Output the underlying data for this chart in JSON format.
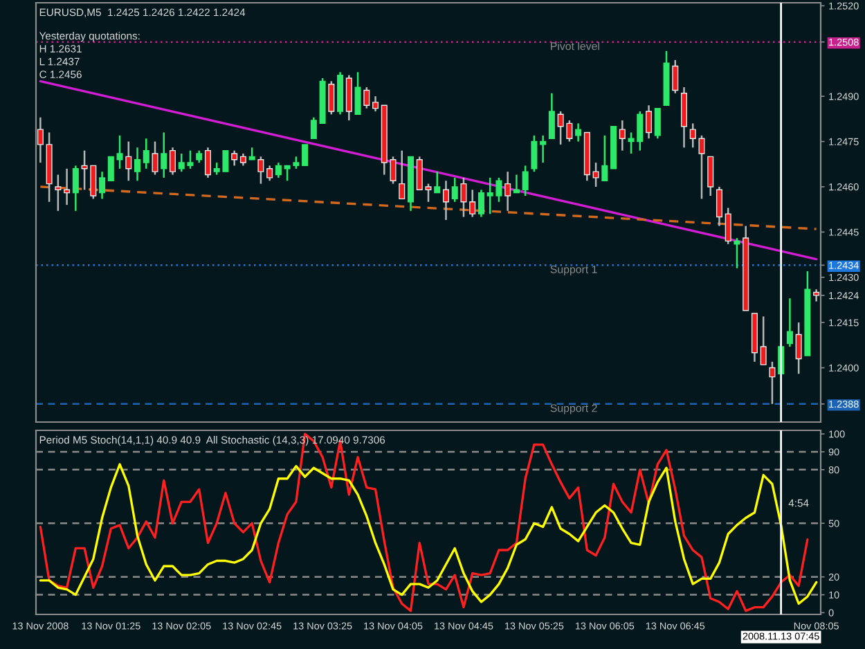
{
  "chart_data": [
    {
      "type": "candlestick",
      "title": "EURUSD,M5  1.2425 1.2426 1.2422 1.2424",
      "annotations": [
        "Yesterday quotations:",
        "H 1.2631",
        "L 1.2437",
        "C 1.2456"
      ],
      "categories": [
        "13 Nov 2008",
        null,
        null,
        null,
        null,
        null,
        null,
        null,
        "13 Nov 01:25",
        null,
        null,
        null,
        null,
        null,
        null,
        null,
        "13 Nov 02:05",
        null,
        null,
        null,
        null,
        null,
        null,
        null,
        "13 Nov 02:45",
        null,
        null,
        null,
        null,
        null,
        null,
        null,
        "13 Nov 03:25",
        null,
        null,
        null,
        null,
        null,
        null,
        null,
        "13 Nov 04:05",
        null,
        null,
        null,
        null,
        null,
        null,
        null,
        "13 Nov 04:45",
        null,
        null,
        null,
        null,
        null,
        null,
        null,
        "13 Nov 05:25",
        null,
        null,
        null,
        null,
        null,
        null,
        null,
        "13 Nov 06:05",
        null,
        null,
        null,
        null,
        null,
        null,
        null,
        "13 Nov 06:45",
        null,
        null,
        null,
        null,
        null,
        null,
        null,
        null,
        null,
        null,
        null,
        "2008.11.13 07:45",
        null,
        null,
        null,
        "Nov 08:05"
      ],
      "ohlc": [
        [
          1.2479,
          1.2483,
          1.2468,
          1.2474
        ],
        [
          1.2474,
          1.2478,
          1.2455,
          1.2461
        ],
        [
          1.246,
          1.2464,
          1.2452,
          1.2459
        ],
        [
          1.2459,
          1.2466,
          1.2454,
          1.2458
        ],
        [
          1.2458,
          1.2467,
          1.2452,
          1.2466
        ],
        [
          1.2467,
          1.2472,
          1.2459,
          1.2466
        ],
        [
          1.2467,
          1.2467,
          1.2456,
          1.2457
        ],
        [
          1.2458,
          1.2465,
          1.2456,
          1.2463
        ],
        [
          1.2462,
          1.247,
          1.2462,
          1.247
        ],
        [
          1.2469,
          1.2477,
          1.2466,
          1.2471
        ],
        [
          1.247,
          1.2475,
          1.2462,
          1.2466
        ],
        [
          1.2465,
          1.2473,
          1.2462,
          1.2469
        ],
        [
          1.2468,
          1.2476,
          1.2466,
          1.2472
        ],
        [
          1.2471,
          1.2475,
          1.2464,
          1.2465
        ],
        [
          1.2466,
          1.2478,
          1.2463,
          1.2471
        ],
        [
          1.2472,
          1.2473,
          1.2464,
          1.2465
        ],
        [
          1.2466,
          1.2471,
          1.2465,
          1.2468
        ],
        [
          1.2467,
          1.2472,
          1.2466,
          1.2468
        ],
        [
          1.2469,
          1.2472,
          1.2468,
          1.2471
        ],
        [
          1.2472,
          1.2473,
          1.2463,
          1.2464
        ],
        [
          1.2465,
          1.2468,
          1.2464,
          1.2466
        ],
        [
          1.2465,
          1.2472,
          1.2465,
          1.2472
        ],
        [
          1.2471,
          1.2472,
          1.2467,
          1.2469
        ],
        [
          1.247,
          1.2471,
          1.2467,
          1.2468
        ],
        [
          1.2469,
          1.2473,
          1.2469,
          1.247
        ],
        [
          1.2469,
          1.247,
          1.2461,
          1.2465
        ],
        [
          1.2466,
          1.2467,
          1.2462,
          1.2463
        ],
        [
          1.2464,
          1.2468,
          1.2463,
          1.2467
        ],
        [
          1.2466,
          1.2467,
          1.2462,
          1.2467
        ],
        [
          1.2467,
          1.247,
          1.2466,
          1.2468
        ],
        [
          1.2467,
          1.2474,
          1.2467,
          1.2474
        ],
        [
          1.2476,
          1.2483,
          1.2476,
          1.2482
        ],
        [
          1.2481,
          1.2496,
          1.2481,
          1.2495
        ],
        [
          1.2494,
          1.2495,
          1.2484,
          1.2485
        ],
        [
          1.2485,
          1.2498,
          1.2484,
          1.2497
        ],
        [
          1.2496,
          1.2497,
          1.2482,
          1.2485
        ],
        [
          1.2484,
          1.2498,
          1.2484,
          1.2493
        ],
        [
          1.2492,
          1.2493,
          1.2486,
          1.2487
        ],
        [
          1.2488,
          1.249,
          1.2485,
          1.2486
        ],
        [
          1.2487,
          1.2487,
          1.2464,
          1.2468
        ],
        [
          1.2469,
          1.247,
          1.2461,
          1.2462
        ],
        [
          1.2461,
          1.2472,
          1.2456,
          1.2456
        ],
        [
          1.2455,
          1.247,
          1.2452,
          1.247
        ],
        [
          1.2469,
          1.247,
          1.2459,
          1.2459
        ],
        [
          1.246,
          1.2461,
          1.2455,
          1.2459
        ],
        [
          1.2458,
          1.2465,
          1.2458,
          1.246
        ],
        [
          1.2459,
          1.2462,
          1.2449,
          1.2455
        ],
        [
          1.2456,
          1.2463,
          1.2455,
          1.246
        ],
        [
          1.2461,
          1.2463,
          1.245,
          1.2455
        ],
        [
          1.2455,
          1.2459,
          1.245,
          1.2451
        ],
        [
          1.2451,
          1.2459,
          1.245,
          1.2458
        ],
        [
          1.2457,
          1.2463,
          1.2451,
          1.2458
        ],
        [
          1.2457,
          1.2463,
          1.2455,
          1.2462
        ],
        [
          1.2461,
          1.2465,
          1.2452,
          1.2457
        ],
        [
          1.2458,
          1.2464,
          1.2458,
          1.2459
        ],
        [
          1.2459,
          1.2467,
          1.2457,
          1.2465
        ],
        [
          1.2466,
          1.2477,
          1.2465,
          1.2475
        ],
        [
          1.2474,
          1.2477,
          1.2468,
          1.2475
        ],
        [
          1.2476,
          1.2491,
          1.2476,
          1.2485
        ],
        [
          1.2484,
          1.2485,
          1.2474,
          1.248
        ],
        [
          1.2481,
          1.2482,
          1.2475,
          1.2476
        ],
        [
          1.2477,
          1.2481,
          1.2475,
          1.2479
        ],
        [
          1.2478,
          1.2478,
          1.2462,
          1.2464
        ],
        [
          1.2465,
          1.2468,
          1.246,
          1.2463
        ],
        [
          1.2462,
          1.2477,
          1.2462,
          1.2467
        ],
        [
          1.2466,
          1.248,
          1.2466,
          1.248
        ],
        [
          1.2479,
          1.2482,
          1.2472,
          1.2476
        ],
        [
          1.2475,
          1.2478,
          1.2471,
          1.2476
        ],
        [
          1.2475,
          1.2485,
          1.2472,
          1.2484
        ],
        [
          1.2485,
          1.2487,
          1.2476,
          1.2478
        ],
        [
          1.2477,
          1.2486,
          1.2476,
          1.2486
        ],
        [
          1.2487,
          1.2505,
          1.2487,
          1.2501
        ],
        [
          1.25,
          1.2502,
          1.2491,
          1.2492
        ],
        [
          1.2491,
          1.2493,
          1.2473,
          1.248
        ],
        [
          1.2479,
          1.2481,
          1.2473,
          1.2476
        ],
        [
          1.2476,
          1.2477,
          1.2456,
          1.2471
        ],
        [
          1.247,
          1.247,
          1.2457,
          1.246
        ],
        [
          1.2459,
          1.246,
          1.2447,
          1.245
        ],
        [
          1.2451,
          1.2453,
          1.2441,
          1.2442
        ],
        [
          1.2441,
          1.2443,
          1.2433,
          1.2442
        ],
        [
          1.2443,
          1.2447,
          1.2419,
          1.2419
        ],
        [
          1.2418,
          1.2418,
          1.2402,
          1.2405
        ],
        [
          1.2407,
          1.2417,
          1.2401,
          1.2401
        ],
        [
          1.24,
          1.2402,
          1.2388,
          1.2397
        ],
        [
          1.2398,
          1.2408,
          1.2398,
          1.2407
        ],
        [
          1.2408,
          1.2423,
          1.2407,
          1.2412
        ],
        [
          1.2411,
          1.2415,
          1.2398,
          1.2403
        ],
        [
          1.2404,
          1.2432,
          1.2404,
          1.2426
        ],
        [
          1.2425,
          1.2426,
          1.2422,
          1.2424
        ]
      ],
      "series": [
        {
          "type": "line",
          "values": [
            1.2495,
            null,
            null,
            null,
            null,
            null,
            null,
            null,
            null,
            null,
            null,
            null,
            null,
            null,
            null,
            null,
            null,
            null,
            null,
            null,
            null,
            null,
            null,
            null,
            null,
            null,
            null,
            null,
            null,
            null,
            null,
            null,
            null,
            null,
            null,
            null,
            null,
            null,
            null,
            null,
            null,
            null,
            null,
            null,
            null,
            null,
            null,
            null,
            null,
            null,
            null,
            null,
            null,
            null,
            null,
            null,
            null,
            null,
            null,
            null,
            null,
            null,
            null,
            null,
            null,
            null,
            null,
            null,
            null,
            null,
            null,
            null,
            null,
            null,
            null,
            null,
            null,
            null,
            null,
            null,
            null,
            null,
            null,
            null,
            null,
            null,
            null,
            null,
            1.2436
          ],
          "color": "#d21ed2",
          "line_style": "solid"
        },
        {
          "type": "line",
          "values": [
            1.246,
            null,
            null,
            null,
            null,
            null,
            null,
            null,
            null,
            null,
            null,
            null,
            null,
            null,
            null,
            null,
            null,
            null,
            null,
            null,
            null,
            null,
            null,
            null,
            null,
            null,
            null,
            null,
            null,
            null,
            null,
            null,
            null,
            null,
            null,
            null,
            null,
            null,
            null,
            null,
            null,
            null,
            null,
            null,
            null,
            null,
            null,
            null,
            null,
            null,
            null,
            null,
            null,
            null,
            null,
            null,
            null,
            null,
            null,
            null,
            null,
            null,
            null,
            null,
            null,
            null,
            null,
            null,
            null,
            null,
            null,
            null,
            null,
            null,
            null,
            null,
            null,
            null,
            null,
            null,
            null,
            null,
            null,
            null,
            null,
            null,
            null,
            null,
            1.2446
          ],
          "color": "#d2691e",
          "line_style": "dashed"
        }
      ],
      "ylim": [
        1.2382,
        1.2521
      ],
      "yticks": [
        {
          "value": 1.252,
          "label": "1.2520"
        },
        {
          "value": 1.2508,
          "label": "1.2508"
        },
        {
          "value": 1.249,
          "label": "1.2490"
        },
        {
          "value": 1.2475,
          "label": "1.2475"
        },
        {
          "value": 1.246,
          "label": "1.2460"
        },
        {
          "value": 1.2445,
          "label": "1.2445"
        },
        {
          "value": 1.2434,
          "label": "1.2434"
        },
        {
          "value": 1.243,
          "label": "1.2430"
        },
        {
          "value": 1.2424,
          "label": "1.2424"
        },
        {
          "value": 1.2415,
          "label": "1.2415"
        },
        {
          "value": 1.24,
          "label": "1.2400"
        },
        {
          "value": 1.2388,
          "label": "1.2388"
        }
      ],
      "tick_labels": "y",
      "ref_lines": [
        {
          "axis": "y",
          "value": 1.2508,
          "label": "Pivot level",
          "color": "#c8208c",
          "line_style": "dotted"
        },
        {
          "axis": "y",
          "value": 1.2434,
          "label": "Support 1",
          "color": "#1e78dc",
          "line_style": "dotted"
        },
        {
          "axis": "y",
          "value": 1.2388,
          "label": "Support 2",
          "color": "#1e64b4",
          "line_style": "dashed"
        },
        {
          "axis": "x",
          "value": "2008.11.13 07:45",
          "color": "#ffffff",
          "line_style": "solid"
        }
      ]
    },
    {
      "type": "line",
      "title": "Period M5 Stoch(14,1,1) 40.9 40.9  All Stochastic (14,3,3) 17.0940 9.7306",
      "annotations": [
        "4:54"
      ],
      "categories": [
        "13 Nov 2008",
        null,
        null,
        null,
        null,
        null,
        null,
        null,
        "13 Nov 01:25",
        null,
        null,
        null,
        null,
        null,
        null,
        null,
        "13 Nov 02:05",
        null,
        null,
        null,
        null,
        null,
        null,
        null,
        "13 Nov 02:45",
        null,
        null,
        null,
        null,
        null,
        null,
        null,
        "13 Nov 03:25",
        null,
        null,
        null,
        null,
        null,
        null,
        null,
        "13 Nov 04:05",
        null,
        null,
        null,
        null,
        null,
        null,
        null,
        "13 Nov 04:45",
        null,
        null,
        null,
        null,
        null,
        null,
        null,
        "13 Nov 05:25",
        null,
        null,
        null,
        null,
        null,
        null,
        null,
        "13 Nov 06:05",
        null,
        null,
        null,
        null,
        null,
        null,
        null,
        "13 Nov 06:45",
        null,
        null,
        null,
        null,
        null,
        null,
        null,
        null,
        null,
        null,
        null,
        "2008.11.13 07:45",
        null,
        null,
        null,
        "Nov 08:05"
      ],
      "series": [
        {
          "color": "#ff2020",
          "values": [
            48,
            18,
            15,
            14,
            36,
            36,
            14,
            26,
            47,
            49,
            36,
            42,
            51,
            42,
            74,
            50,
            62,
            62,
            69,
            39,
            50,
            67,
            50,
            45,
            50,
            29,
            17,
            39,
            55,
            62,
            100,
            96,
            87,
            70,
            96,
            66,
            87,
            70,
            69,
            40,
            14,
            5,
            1,
            39,
            16,
            16,
            13,
            21,
            3,
            22,
            21,
            22,
            35,
            35,
            39,
            75,
            94,
            94,
            83,
            73,
            64,
            70,
            35,
            32,
            42,
            72,
            62,
            56,
            80,
            61,
            83,
            91,
            69,
            43,
            35,
            31,
            8,
            6,
            2,
            12,
            1,
            3,
            3,
            9,
            17,
            21,
            15,
            40.9,
            null
          ]
        },
        {
          "color": "#ffff00",
          "values": [
            18,
            18,
            14,
            13,
            10,
            20,
            30,
            53,
            70,
            83,
            71,
            43,
            27,
            18,
            26,
            26,
            21,
            21,
            22,
            27,
            29,
            29,
            28,
            30,
            35,
            50,
            58,
            75,
            75,
            82,
            76,
            81,
            78,
            75,
            75,
            74,
            66,
            54,
            39,
            27,
            13,
            10,
            16,
            16,
            14,
            18,
            27,
            36,
            22,
            12,
            6,
            10,
            16,
            25,
            38,
            41,
            50,
            48,
            59,
            47,
            44,
            40,
            48,
            56,
            60,
            56,
            47,
            39,
            38,
            62,
            73,
            81,
            51,
            30,
            16,
            19,
            19,
            28,
            44,
            49,
            53,
            56,
            77,
            72,
            49,
            18,
            5,
            9,
            17
          ]
        }
      ],
      "ylim": [
        -1,
        102
      ],
      "yticks": [
        100,
        90,
        80,
        50,
        20,
        10,
        0
      ],
      "ref_lines": [
        {
          "axis": "y",
          "value": 90,
          "color": "#8c8c8c",
          "line_style": "dashed"
        },
        {
          "axis": "y",
          "value": 80,
          "color": "#8c8c8c",
          "line_style": "dashed"
        },
        {
          "axis": "y",
          "value": 50,
          "color": "#8c8c8c",
          "line_style": "dashed"
        },
        {
          "axis": "y",
          "value": 20,
          "color": "#8c8c8c",
          "line_style": "dashed"
        },
        {
          "axis": "y",
          "value": 10,
          "color": "#8c8c8c",
          "line_style": "dashed"
        },
        {
          "axis": "x",
          "value": "2008.11.13 07:45",
          "color": "#ffffff",
          "line_style": "solid"
        }
      ]
    }
  ]
}
